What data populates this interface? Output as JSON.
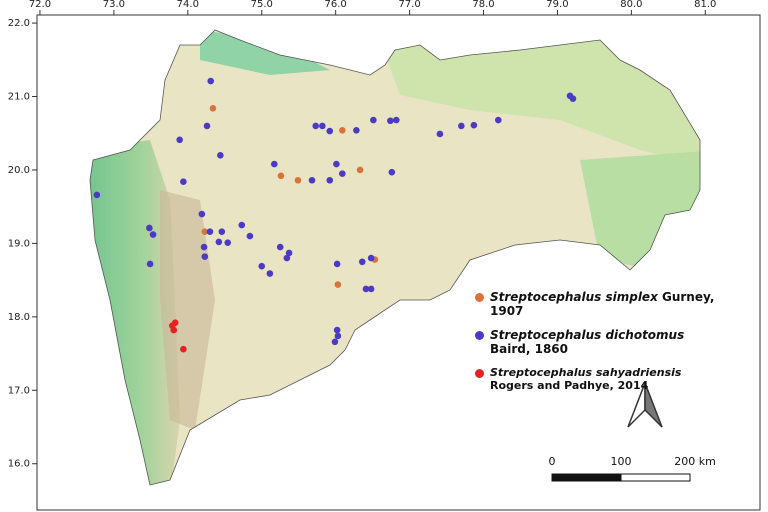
{
  "chart_data": {
    "type": "scatter",
    "xlim": [
      71.96,
      81.74
    ],
    "ylim": [
      15.37,
      22.11
    ],
    "xticks": [
      {
        "value": 72,
        "label": "72.0"
      },
      {
        "value": 73,
        "label": "73.0"
      },
      {
        "value": 74,
        "label": "74.0"
      },
      {
        "value": 75,
        "label": "75.0"
      },
      {
        "value": 76,
        "label": "76.0"
      },
      {
        "value": 77,
        "label": "77.0"
      },
      {
        "value": 78,
        "label": "78.0"
      },
      {
        "value": 79,
        "label": "79.0"
      },
      {
        "value": 80,
        "label": "80.0"
      },
      {
        "value": 81,
        "label": "81.0"
      }
    ],
    "yticks": [
      {
        "value": 16,
        "label": "16.0"
      },
      {
        "value": 17,
        "label": "17.0"
      },
      {
        "value": 18,
        "label": "18.0"
      },
      {
        "value": 19,
        "label": "19.0"
      },
      {
        "value": 20,
        "label": "20.0"
      },
      {
        "value": 21,
        "label": "21.0"
      },
      {
        "value": 22,
        "label": "22.0"
      }
    ],
    "series": [
      {
        "name": "Streptocephalus simplex",
        "authority": "Gurney, 1907",
        "color": "#d9733a",
        "x": [
          74.34,
          76.09,
          75.26,
          75.49,
          76.33,
          74.23,
          76.53,
          76.03
        ],
        "values": [
          20.84,
          20.54,
          19.92,
          19.86,
          20.0,
          19.16,
          18.78,
          18.44
        ]
      },
      {
        "name": "Streptocephalus dichotomus",
        "authority": "Baird, 1860",
        "color": "#4b3bc4",
        "x": [
          74.31,
          74.26,
          73.89,
          74.44,
          73.94,
          72.77,
          74.19,
          73.48,
          73.53,
          74.3,
          74.46,
          74.42,
          74.54,
          74.73,
          74.84,
          74.22,
          74.23,
          73.49,
          75.0,
          75.11,
          75.25,
          75.37,
          75.34,
          75.17,
          75.68,
          75.73,
          75.82,
          75.92,
          76.28,
          76.51,
          76.74,
          76.82,
          76.01,
          76.09,
          75.92,
          76.76,
          77.41,
          77.7,
          77.87,
          78.2,
          79.17,
          79.21,
          76.02,
          76.36,
          76.48,
          76.41,
          76.48,
          76.02,
          76.03,
          75.99
        ],
        "values": [
          21.21,
          20.6,
          20.41,
          20.2,
          19.84,
          19.66,
          19.4,
          19.21,
          19.12,
          19.16,
          19.16,
          19.02,
          19.01,
          19.25,
          19.1,
          18.95,
          18.82,
          18.72,
          18.69,
          18.59,
          18.95,
          18.87,
          18.8,
          20.08,
          19.86,
          20.6,
          20.6,
          20.53,
          20.54,
          20.68,
          20.67,
          20.68,
          20.08,
          19.95,
          19.86,
          19.97,
          20.49,
          20.6,
          20.61,
          20.68,
          21.01,
          20.97,
          18.72,
          18.75,
          18.8,
          18.38,
          18.38,
          17.82,
          17.74,
          17.66
        ]
      },
      {
        "name": "Streptocephalus sahyadriensis",
        "authority": "Rogers and Padhye, 2014",
        "color": "#e32222",
        "x": [
          73.83,
          73.79,
          73.81,
          73.94
        ],
        "values": [
          17.92,
          17.88,
          17.82,
          17.56
        ]
      }
    ],
    "scale_bar": {
      "labels": [
        "0",
        "100",
        "200 km"
      ]
    }
  }
}
